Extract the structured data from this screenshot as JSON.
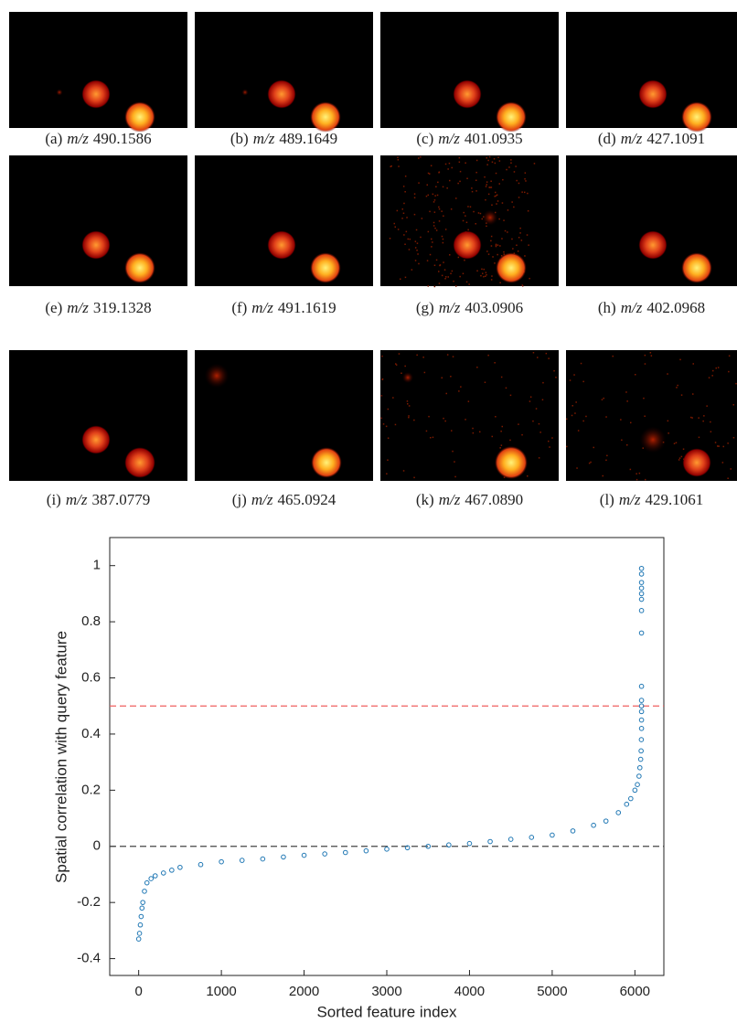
{
  "panels": [
    {
      "label": "(a)",
      "mz_prefix": "m/z",
      "mz": "490.1586"
    },
    {
      "label": "(b)",
      "mz_prefix": "m/z",
      "mz": "489.1649"
    },
    {
      "label": "(c)",
      "mz_prefix": "m/z",
      "mz": "401.0935"
    },
    {
      "label": "(d)",
      "mz_prefix": "m/z",
      "mz": "427.1091"
    },
    {
      "label": "(e)",
      "mz_prefix": "m/z",
      "mz": "319.1328"
    },
    {
      "label": "(f)",
      "mz_prefix": "m/z",
      "mz": "491.1619"
    },
    {
      "label": "(g)",
      "mz_prefix": "m/z",
      "mz": "403.0906"
    },
    {
      "label": "(h)",
      "mz_prefix": "m/z",
      "mz": "402.0968"
    },
    {
      "label": "(i)",
      "mz_prefix": "m/z",
      "mz": "387.0779"
    },
    {
      "label": "(j)",
      "mz_prefix": "m/z",
      "mz": "465.0924"
    },
    {
      "label": "(k)",
      "mz_prefix": "m/z",
      "mz": "467.0890"
    },
    {
      "label": "(l)",
      "mz_prefix": "m/z",
      "mz": "429.1061"
    }
  ],
  "chart_data": {
    "type": "scatter",
    "x_label": "Sorted feature index",
    "y_label": "Spatial correlation with query feature",
    "color": "#1f77b4",
    "x": [
      0,
      10,
      20,
      30,
      40,
      50,
      70,
      100,
      150,
      200,
      300,
      400,
      500,
      750,
      1000,
      1250,
      1500,
      1750,
      2000,
      2250,
      2500,
      2750,
      3000,
      3250,
      3500,
      3750,
      4000,
      4250,
      4500,
      4750,
      5000,
      5250,
      5500,
      5650,
      5800,
      5900,
      5950,
      6000,
      6030,
      6050,
      6060,
      6070,
      6075,
      6078,
      6080,
      6080,
      6080,
      6080,
      6080,
      6080,
      6080,
      6080,
      6080,
      6080,
      6080,
      6080,
      6080,
      6080
    ],
    "y": [
      -0.33,
      -0.31,
      -0.28,
      -0.25,
      -0.22,
      -0.2,
      -0.16,
      -0.13,
      -0.115,
      -0.105,
      -0.095,
      -0.085,
      -0.075,
      -0.065,
      -0.055,
      -0.05,
      -0.045,
      -0.038,
      -0.032,
      -0.027,
      -0.022,
      -0.016,
      -0.01,
      -0.005,
      0,
      0.005,
      0.01,
      0.017,
      0.025,
      0.032,
      0.04,
      0.055,
      0.075,
      0.09,
      0.12,
      0.15,
      0.17,
      0.2,
      0.22,
      0.25,
      0.28,
      0.31,
      0.34,
      0.38,
      0.42,
      0.45,
      0.48,
      0.5,
      0.52,
      0.57,
      0.76,
      0.84,
      0.88,
      0.9,
      0.92,
      0.94,
      0.97,
      0.99
    ],
    "xlim": [
      -350,
      6350
    ],
    "ylim": [
      -0.46,
      1.1
    ],
    "xticks": [
      0,
      1000,
      2000,
      3000,
      4000,
      5000,
      6000
    ],
    "yticks": [
      -0.4,
      -0.2,
      0,
      0.2,
      0.4,
      0.6,
      0.8,
      1
    ],
    "reference_lines": [
      {
        "value": 0.5,
        "color": "#f06060"
      },
      {
        "value": 0,
        "color": "#444444"
      }
    ]
  }
}
